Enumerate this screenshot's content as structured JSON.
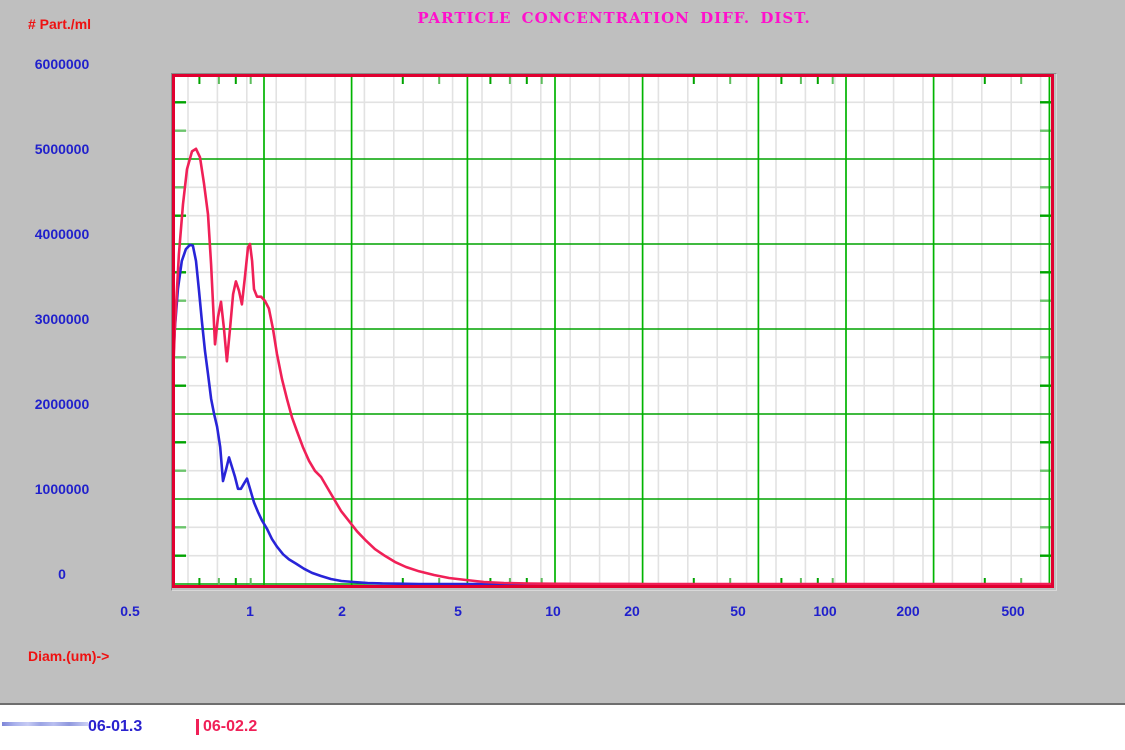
{
  "header": {
    "title": "PARTICLE CONCENTRATION DIFF. DIST.",
    "y_axis_label": "# Part./ml",
    "x_axis_label": "Diam.(um)->"
  },
  "legend": {
    "series1_label": "06-01.3",
    "series2_label": "06-02.2"
  },
  "colors": {
    "panel_bg": "#bfbfbf",
    "title": "#ff10cc",
    "axis_titles": "#ee1111",
    "tick_labels": "#2020cc",
    "plot_border": "#e00030",
    "major_grid_green": "#00a300",
    "minor_grid_gray": "#e2e2e2",
    "series1_blue": "#2824d8",
    "series2_red": "#f02057"
  },
  "chart_data": {
    "type": "line",
    "title": "PARTICLE CONCENTRATION DIFF. DIST.",
    "xlabel": "Diam.(um)->",
    "ylabel": "# Part./ml",
    "x_scale": "log",
    "xlim": [
      0.483,
      518
    ],
    "ylim": [
      0,
      6000000
    ],
    "x_ticks": [
      "0.5",
      "1",
      "2",
      "5",
      "10",
      "20",
      "50",
      "100",
      "200",
      "500"
    ],
    "y_ticks": [
      "6000000",
      "5000000",
      "4000000",
      "3000000",
      "2000000",
      "1000000",
      "0"
    ],
    "grid": true,
    "legend_position": "bottom-left",
    "series": [
      {
        "name": "06-01.3",
        "color": "#2824d8",
        "points": [
          [
            0.483,
            2350000
          ],
          [
            0.494,
            3000000
          ],
          [
            0.506,
            3470000
          ],
          [
            0.522,
            3800000
          ],
          [
            0.539,
            3940000
          ],
          [
            0.557,
            3990000
          ],
          [
            0.57,
            3980000
          ],
          [
            0.584,
            3800000
          ],
          [
            0.598,
            3450000
          ],
          [
            0.612,
            3090000
          ],
          [
            0.627,
            2740000
          ],
          [
            0.642,
            2470000
          ],
          [
            0.658,
            2180000
          ],
          [
            0.674,
            2000000
          ],
          [
            0.69,
            1850000
          ],
          [
            0.707,
            1610000
          ],
          [
            0.723,
            1210000
          ],
          [
            0.741,
            1350000
          ],
          [
            0.758,
            1490000
          ],
          [
            0.776,
            1380000
          ],
          [
            0.795,
            1260000
          ],
          [
            0.814,
            1120000
          ],
          [
            0.833,
            1120000
          ],
          [
            0.853,
            1180000
          ],
          [
            0.874,
            1240000
          ],
          [
            0.895,
            1120000
          ],
          [
            0.924,
            960000
          ],
          [
            0.953,
            850000
          ],
          [
            0.984,
            750000
          ],
          [
            1.024,
            650000
          ],
          [
            1.065,
            530000
          ],
          [
            1.108,
            440000
          ],
          [
            1.163,
            350000
          ],
          [
            1.219,
            290000
          ],
          [
            1.288,
            240000
          ],
          [
            1.372,
            180000
          ],
          [
            1.462,
            130000
          ],
          [
            1.57,
            94000
          ],
          [
            1.697,
            59000
          ],
          [
            1.846,
            35000
          ],
          [
            2.038,
            24000
          ],
          [
            2.273,
            12000
          ],
          [
            2.575,
            6000
          ],
          [
            2.906,
            3000
          ],
          [
            3.409,
            0
          ],
          [
            4.322,
            0
          ],
          [
            5.479,
            0
          ],
          [
            6.94,
            0
          ],
          [
            8.81,
            0
          ],
          [
            10.63,
            0
          ]
        ]
      },
      {
        "name": "06-02.2",
        "color": "#f02057",
        "points": [
          [
            0.483,
            2120000
          ],
          [
            0.494,
            3000000
          ],
          [
            0.51,
            3880000
          ],
          [
            0.527,
            4470000
          ],
          [
            0.544,
            4880000
          ],
          [
            0.566,
            5090000
          ],
          [
            0.584,
            5120000
          ],
          [
            0.603,
            5020000
          ],
          [
            0.622,
            4710000
          ],
          [
            0.642,
            4350000
          ],
          [
            0.658,
            3760000
          ],
          [
            0.679,
            2820000
          ],
          [
            0.695,
            3140000
          ],
          [
            0.712,
            3320000
          ],
          [
            0.729,
            3000000
          ],
          [
            0.746,
            2620000
          ],
          [
            0.764,
            3000000
          ],
          [
            0.783,
            3410000
          ],
          [
            0.801,
            3560000
          ],
          [
            0.821,
            3450000
          ],
          [
            0.84,
            3290000
          ],
          [
            0.86,
            3610000
          ],
          [
            0.881,
            3960000
          ],
          [
            0.895,
            4000000
          ],
          [
            0.91,
            3800000
          ],
          [
            0.924,
            3470000
          ],
          [
            0.946,
            3380000
          ],
          [
            0.977,
            3380000
          ],
          [
            1.008,
            3330000
          ],
          [
            1.04,
            3240000
          ],
          [
            1.074,
            3000000
          ],
          [
            1.108,
            2710000
          ],
          [
            1.153,
            2410000
          ],
          [
            1.199,
            2180000
          ],
          [
            1.248,
            1960000
          ],
          [
            1.298,
            1800000
          ],
          [
            1.361,
            1610000
          ],
          [
            1.428,
            1450000
          ],
          [
            1.497,
            1330000
          ],
          [
            1.57,
            1260000
          ],
          [
            1.647,
            1140000
          ],
          [
            1.74,
            1000000
          ],
          [
            1.84,
            860000
          ],
          [
            1.96,
            740000
          ],
          [
            2.087,
            620000
          ],
          [
            2.241,
            510000
          ],
          [
            2.406,
            410000
          ],
          [
            2.605,
            330000
          ],
          [
            2.819,
            260000
          ],
          [
            3.076,
            200000
          ],
          [
            3.409,
            150000
          ],
          [
            3.839,
            106000
          ],
          [
            4.322,
            71000
          ],
          [
            4.945,
            47000
          ],
          [
            5.702,
            24000
          ],
          [
            6.679,
            12000
          ],
          [
            8.142,
            5000
          ],
          [
            10.32,
            2000
          ],
          [
            14.17,
            1000
          ],
          [
            21.04,
            0
          ],
          [
            31.26,
            0
          ],
          [
            50.2,
            0
          ],
          [
            102.4,
            0
          ],
          [
            226,
            0
          ],
          [
            518,
            0
          ]
        ]
      }
    ]
  }
}
